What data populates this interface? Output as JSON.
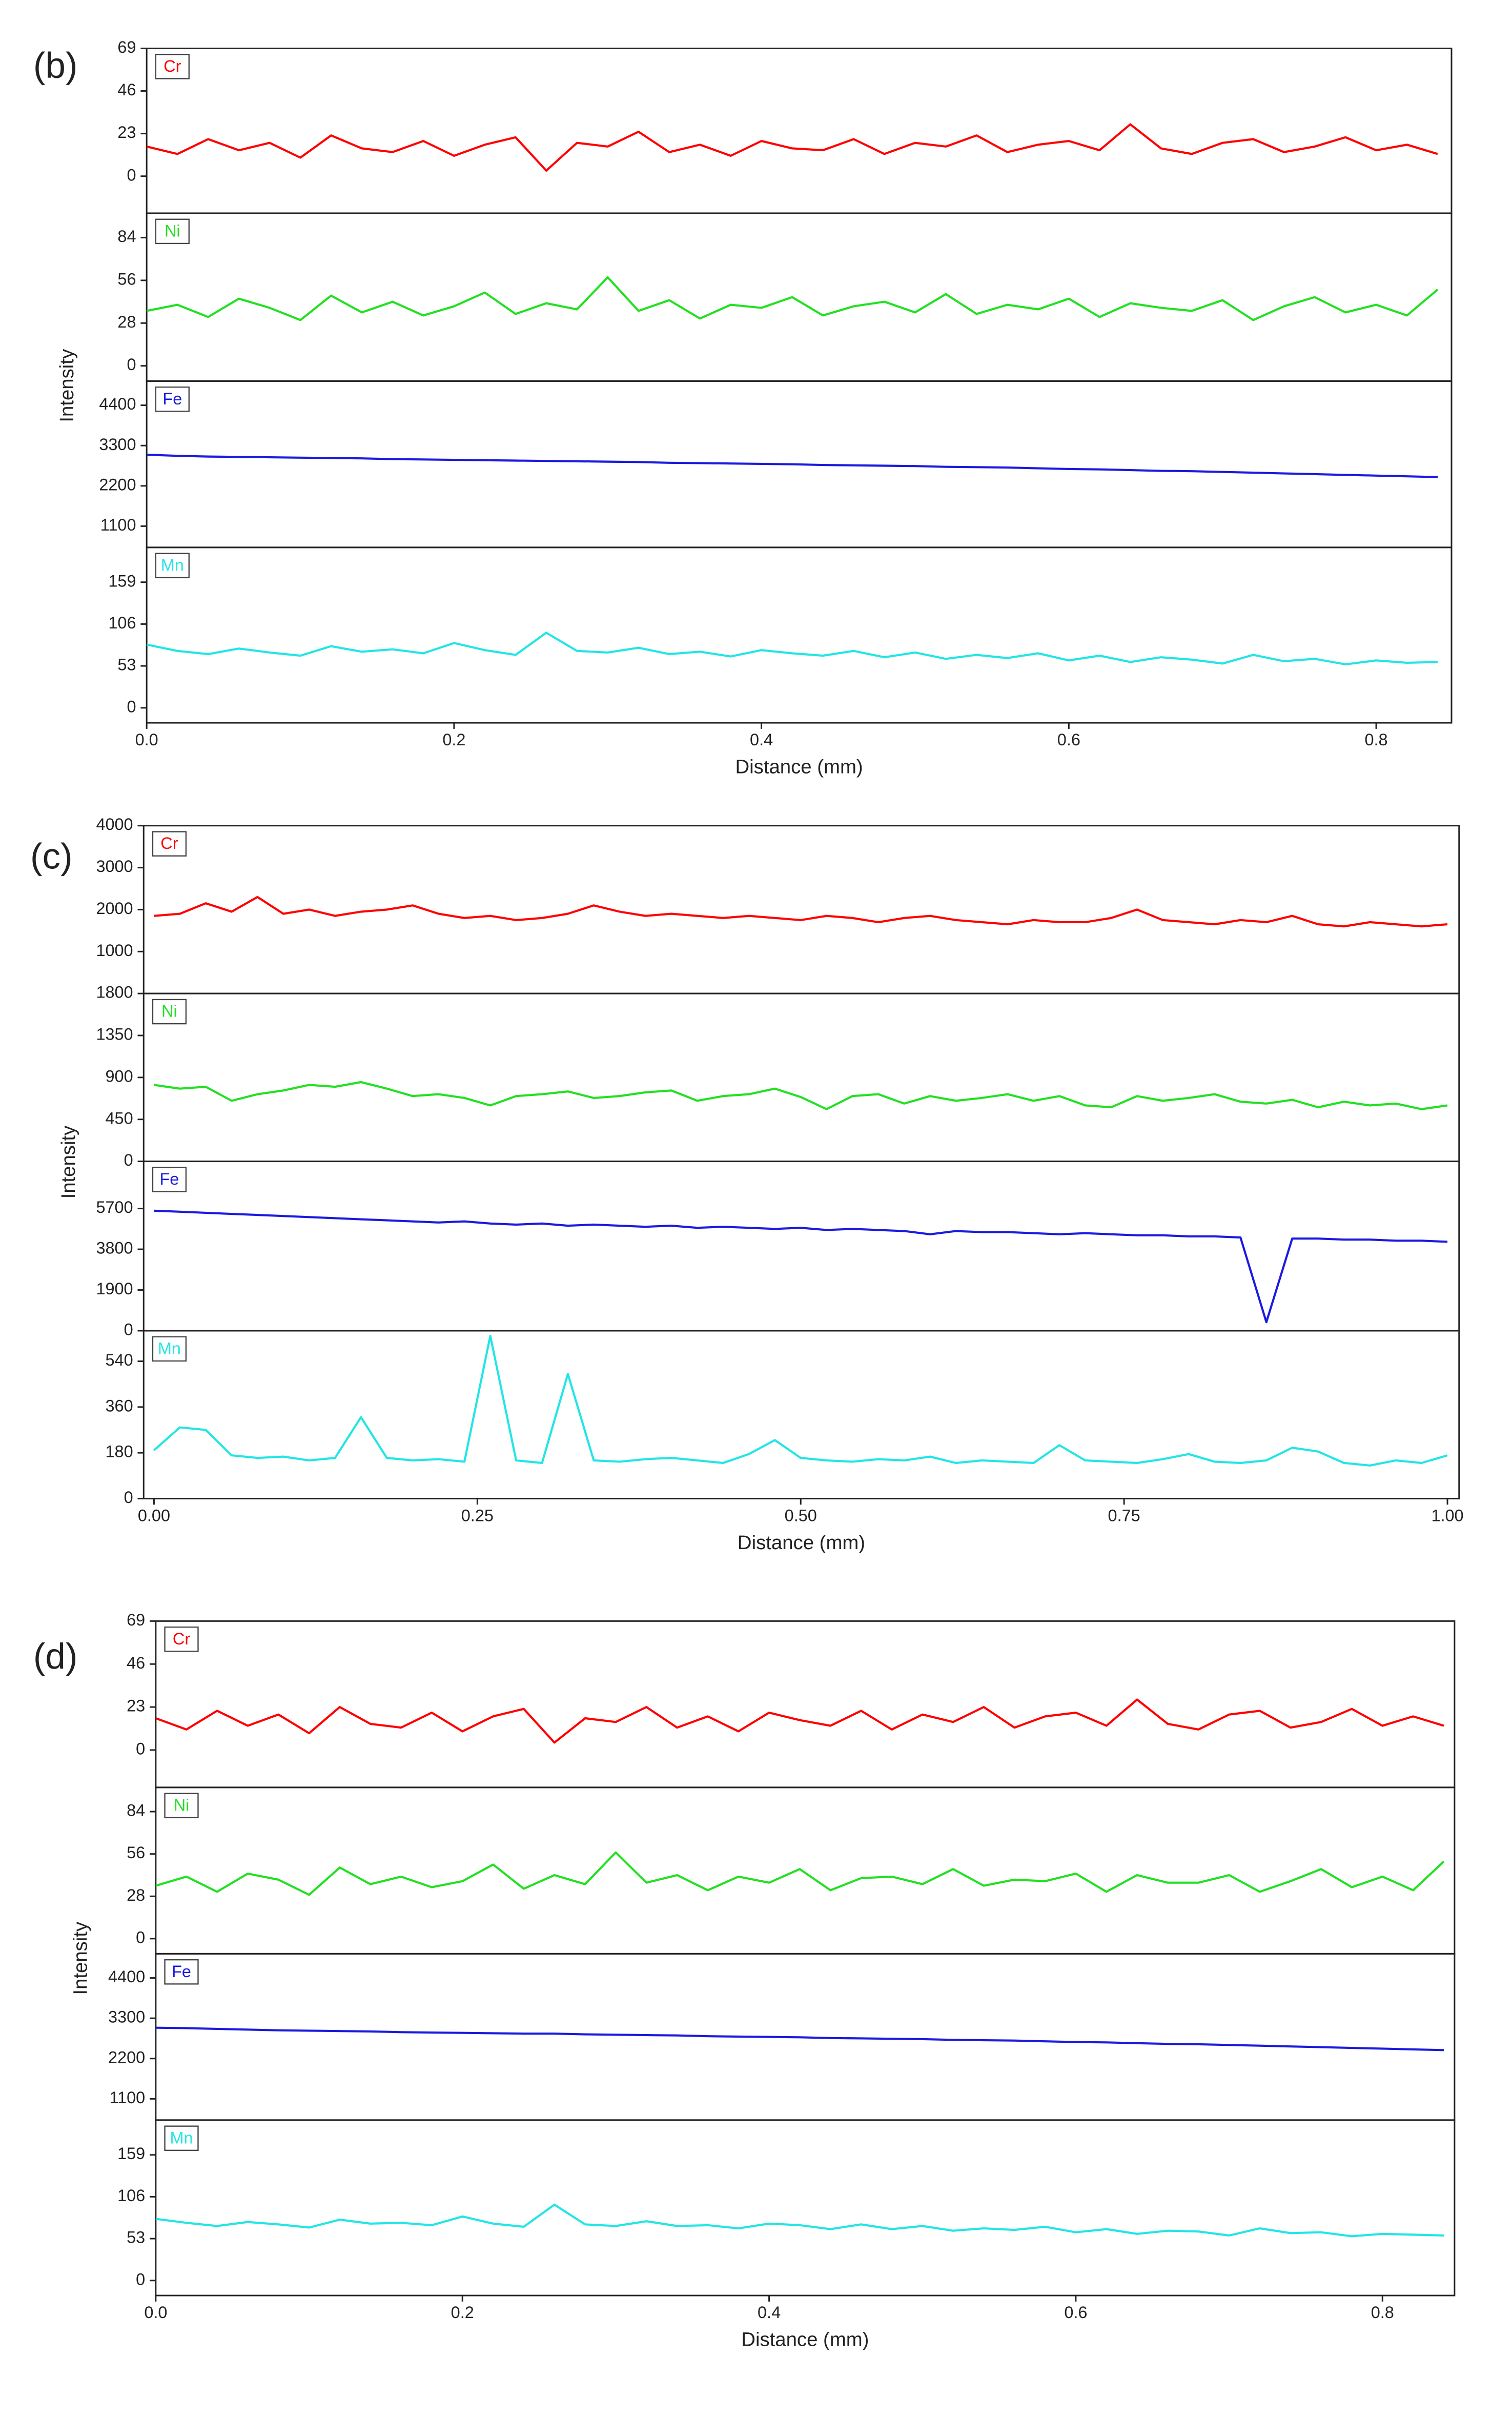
{
  "chart_data": [
    {
      "type": "line",
      "panel_label": "(b)",
      "xlabel": "Distance (mm)",
      "ylabel": "Intensity",
      "xlim": [
        0,
        0.849
      ],
      "xticks": [
        {
          "value": 0,
          "label": "0.0"
        },
        0.2,
        0.4,
        0.6,
        0.8
      ],
      "x": [
        0,
        0.02,
        0.04,
        0.06,
        0.08,
        0.1,
        0.12,
        0.14,
        0.16,
        0.18,
        0.2,
        0.22,
        0.24,
        0.26,
        0.28,
        0.3,
        0.32,
        0.34,
        0.36,
        0.38,
        0.4,
        0.42,
        0.44,
        0.46,
        0.48,
        0.5,
        0.52,
        0.54,
        0.56,
        0.58,
        0.6,
        0.62,
        0.64,
        0.66,
        0.68,
        0.7,
        0.72,
        0.74,
        0.76,
        0.78,
        0.8,
        0.82,
        0.84
      ],
      "subplots": [
        {
          "ylim": [
            -20,
            69
          ],
          "yticks": [
            0,
            23,
            46,
            69
          ],
          "series": [
            {
              "name": "Cr",
              "color": "#ff0000",
              "values": [
                16,
                12,
                20,
                14,
                18,
                10,
                22,
                15,
                13,
                19,
                11,
                17,
                21,
                3,
                18,
                16,
                24,
                13,
                17,
                11,
                19,
                15,
                14,
                20,
                12,
                18,
                16,
                22,
                13,
                17,
                19,
                14,
                28,
                15,
                12,
                18,
                20,
                13,
                16,
                21,
                14,
                17,
                12
              ]
            }
          ]
        },
        {
          "ylim": [
            -10,
            100
          ],
          "yticks": [
            0,
            28,
            56,
            84
          ],
          "series": [
            {
              "name": "Ni",
              "color": "#22e022",
              "values": [
                36,
                40,
                32,
                44,
                38,
                30,
                46,
                35,
                42,
                33,
                39,
                48,
                34,
                41,
                37,
                58,
                36,
                43,
                31,
                40,
                38,
                45,
                33,
                39,
                42,
                35,
                47,
                34,
                40,
                37,
                44,
                32,
                41,
                38,
                36,
                43,
                30,
                39,
                45,
                35,
                40,
                33,
                50
              ]
            }
          ]
        },
        {
          "ylim": [
            520,
            5060
          ],
          "yticks": [
            1100,
            2200,
            3300,
            4400
          ],
          "series": [
            {
              "name": "Fe",
              "color": "#1a1ae0",
              "values": [
                3050,
                3020,
                3000,
                2990,
                2980,
                2970,
                2960,
                2950,
                2930,
                2920,
                2910,
                2900,
                2890,
                2880,
                2870,
                2860,
                2850,
                2830,
                2820,
                2810,
                2800,
                2790,
                2770,
                2760,
                2750,
                2740,
                2720,
                2710,
                2700,
                2680,
                2660,
                2650,
                2630,
                2610,
                2600,
                2580,
                2560,
                2540,
                2520,
                2500,
                2480,
                2460,
                2440
              ]
            }
          ]
        },
        {
          "ylim": [
            -19,
            203
          ],
          "yticks": [
            0,
            53,
            106,
            159
          ],
          "series": [
            {
              "name": "Mn",
              "color": "#22e5e5",
              "values": [
                80,
                72,
                68,
                75,
                70,
                66,
                78,
                71,
                74,
                69,
                82,
                73,
                67,
                95,
                72,
                70,
                76,
                68,
                71,
                65,
                73,
                69,
                66,
                72,
                64,
                70,
                62,
                67,
                63,
                69,
                60,
                66,
                58,
                64,
                61,
                56,
                67,
                59,
                62,
                55,
                60,
                57,
                58
              ]
            }
          ]
        }
      ]
    },
    {
      "type": "line",
      "panel_label": "(c)",
      "xlabel": "Distance (mm)",
      "ylabel": "Intensity",
      "xlim": [
        -0.008,
        1.009
      ],
      "xticks": [
        {
          "value": 0,
          "label": "0.00"
        },
        0.25,
        {
          "value": 0.5,
          "label": "0.50"
        },
        0.75,
        {
          "value": 1,
          "label": "1.00"
        }
      ],
      "x": [
        0,
        0.02,
        0.04,
        0.06,
        0.08,
        0.1,
        0.12,
        0.14,
        0.16,
        0.18,
        0.2,
        0.22,
        0.24,
        0.26,
        0.28,
        0.3,
        0.32,
        0.34,
        0.36,
        0.38,
        0.4,
        0.42,
        0.44,
        0.46,
        0.48,
        0.5,
        0.52,
        0.54,
        0.56,
        0.58,
        0.6,
        0.62,
        0.64,
        0.66,
        0.68,
        0.7,
        0.72,
        0.74,
        0.76,
        0.78,
        0.8,
        0.82,
        0.84,
        0.86,
        0.88,
        0.9,
        0.92,
        0.94,
        0.96,
        0.98,
        1.0
      ],
      "subplots": [
        {
          "ylim": [
            0,
            4000
          ],
          "yticks": [
            1000,
            2000,
            3000,
            4000
          ],
          "series": [
            {
              "name": "Cr",
              "color": "#ff0000",
              "values": [
                1850,
                1900,
                2150,
                1950,
                2300,
                1900,
                2000,
                1850,
                1950,
                2000,
                2100,
                1900,
                1800,
                1850,
                1750,
                1800,
                1900,
                2100,
                1950,
                1850,
                1900,
                1850,
                1800,
                1850,
                1800,
                1750,
                1850,
                1800,
                1700,
                1800,
                1850,
                1750,
                1700,
                1650,
                1750,
                1700,
                1700,
                1800,
                2000,
                1750,
                1700,
                1650,
                1750,
                1700,
                1850,
                1650,
                1600,
                1700,
                1650,
                1600,
                1650
              ]
            }
          ]
        },
        {
          "ylim": [
            0,
            1800
          ],
          "yticks": [
            0,
            450,
            900,
            1350,
            1800
          ],
          "series": [
            {
              "name": "Ni",
              "color": "#22e022",
              "values": [
                820,
                780,
                800,
                650,
                720,
                760,
                820,
                800,
                850,
                780,
                700,
                720,
                680,
                600,
                700,
                720,
                750,
                680,
                700,
                740,
                760,
                650,
                700,
                720,
                780,
                690,
                560,
                700,
                720,
                620,
                700,
                650,
                680,
                720,
                650,
                700,
                600,
                580,
                700,
                650,
                680,
                720,
                640,
                620,
                660,
                580,
                640,
                600,
                620,
                560,
                600
              ]
            }
          ]
        },
        {
          "ylim": [
            0,
            7900
          ],
          "yticks": [
            0,
            1900,
            3800,
            5700
          ],
          "series": [
            {
              "name": "Fe",
              "color": "#1a1ae0",
              "values": [
                5600,
                5550,
                5500,
                5450,
                5400,
                5350,
                5300,
                5250,
                5200,
                5150,
                5100,
                5050,
                5100,
                5000,
                4950,
                5000,
                4900,
                4950,
                4900,
                4850,
                4900,
                4800,
                4850,
                4800,
                4750,
                4800,
                4700,
                4750,
                4700,
                4650,
                4500,
                4650,
                4600,
                4600,
                4550,
                4500,
                4550,
                4500,
                4450,
                4450,
                4400,
                4400,
                4350,
                400,
                4300,
                4300,
                4250,
                4250,
                4200,
                4200,
                4150
              ]
            }
          ]
        },
        {
          "ylim": [
            0,
            660
          ],
          "yticks": [
            0,
            180,
            360,
            540
          ],
          "series": [
            {
              "name": "Mn",
              "color": "#22e5e5",
              "values": [
                190,
                280,
                270,
                170,
                160,
                165,
                150,
                160,
                320,
                160,
                150,
                155,
                145,
                640,
                150,
                140,
                490,
                150,
                145,
                155,
                160,
                150,
                140,
                175,
                230,
                160,
                150,
                145,
                155,
                150,
                165,
                140,
                150,
                145,
                140,
                210,
                150,
                145,
                140,
                155,
                175,
                145,
                140,
                150,
                200,
                185,
                140,
                130,
                150,
                140,
                170
              ]
            }
          ]
        }
      ]
    },
    {
      "type": "line",
      "panel_label": "(d)",
      "xlabel": "Distance (mm)",
      "ylabel": "Intensity",
      "xlim": [
        0,
        0.847
      ],
      "xticks": [
        {
          "value": 0,
          "label": "0.0"
        },
        0.2,
        0.4,
        0.6,
        0.8
      ],
      "x": [
        0,
        0.02,
        0.04,
        0.06,
        0.08,
        0.1,
        0.12,
        0.14,
        0.16,
        0.18,
        0.2,
        0.22,
        0.24,
        0.26,
        0.28,
        0.3,
        0.32,
        0.34,
        0.36,
        0.38,
        0.4,
        0.42,
        0.44,
        0.46,
        0.48,
        0.5,
        0.52,
        0.54,
        0.56,
        0.58,
        0.6,
        0.62,
        0.64,
        0.66,
        0.68,
        0.7,
        0.72,
        0.74,
        0.76,
        0.78,
        0.8,
        0.82,
        0.84
      ],
      "subplots": [
        {
          "ylim": [
            -20,
            69
          ],
          "yticks": [
            0,
            23,
            46,
            69
          ],
          "series": [
            {
              "name": "Cr",
              "color": "#ff0000",
              "values": [
                17,
                11,
                21,
                13,
                19,
                9,
                23,
                14,
                12,
                20,
                10,
                18,
                22,
                4,
                17,
                15,
                23,
                12,
                18,
                10,
                20,
                16,
                13,
                21,
                11,
                19,
                15,
                23,
                12,
                18,
                20,
                13,
                27,
                14,
                11,
                19,
                21,
                12,
                15,
                22,
                13,
                18,
                13
              ]
            }
          ]
        },
        {
          "ylim": [
            -10,
            100
          ],
          "yticks": [
            0,
            28,
            56,
            84
          ],
          "series": [
            {
              "name": "Ni",
              "color": "#22e022",
              "values": [
                35,
                41,
                31,
                43,
                39,
                29,
                47,
                36,
                41,
                34,
                38,
                49,
                33,
                42,
                36,
                57,
                37,
                42,
                32,
                41,
                37,
                46,
                32,
                40,
                41,
                36,
                46,
                35,
                39,
                38,
                43,
                31,
                42,
                37,
                37,
                42,
                31,
                38,
                46,
                34,
                41,
                32,
                51
              ]
            }
          ]
        },
        {
          "ylim": [
            520,
            5060
          ],
          "yticks": [
            1100,
            2200,
            3300,
            4400
          ],
          "series": [
            {
              "name": "Fe",
              "color": "#1a1ae0",
              "values": [
                3040,
                3030,
                3010,
                2990,
                2970,
                2960,
                2950,
                2940,
                2920,
                2910,
                2900,
                2890,
                2880,
                2880,
                2860,
                2850,
                2840,
                2830,
                2810,
                2800,
                2790,
                2780,
                2760,
                2750,
                2740,
                2730,
                2710,
                2700,
                2690,
                2670,
                2650,
                2640,
                2620,
                2600,
                2590,
                2570,
                2550,
                2530,
                2510,
                2490,
                2470,
                2450,
                2430
              ]
            }
          ]
        },
        {
          "ylim": [
            -19,
            203
          ],
          "yticks": [
            0,
            53,
            106,
            159
          ],
          "series": [
            {
              "name": "Mn",
              "color": "#22e5e5",
              "values": [
                78,
                73,
                69,
                74,
                71,
                67,
                77,
                72,
                73,
                70,
                81,
                72,
                68,
                96,
                71,
                69,
                75,
                69,
                70,
                66,
                72,
                70,
                65,
                71,
                65,
                69,
                63,
                66,
                64,
                68,
                61,
                65,
                59,
                63,
                62,
                57,
                66,
                60,
                61,
                56,
                59,
                58,
                57
              ]
            }
          ]
        }
      ]
    }
  ]
}
